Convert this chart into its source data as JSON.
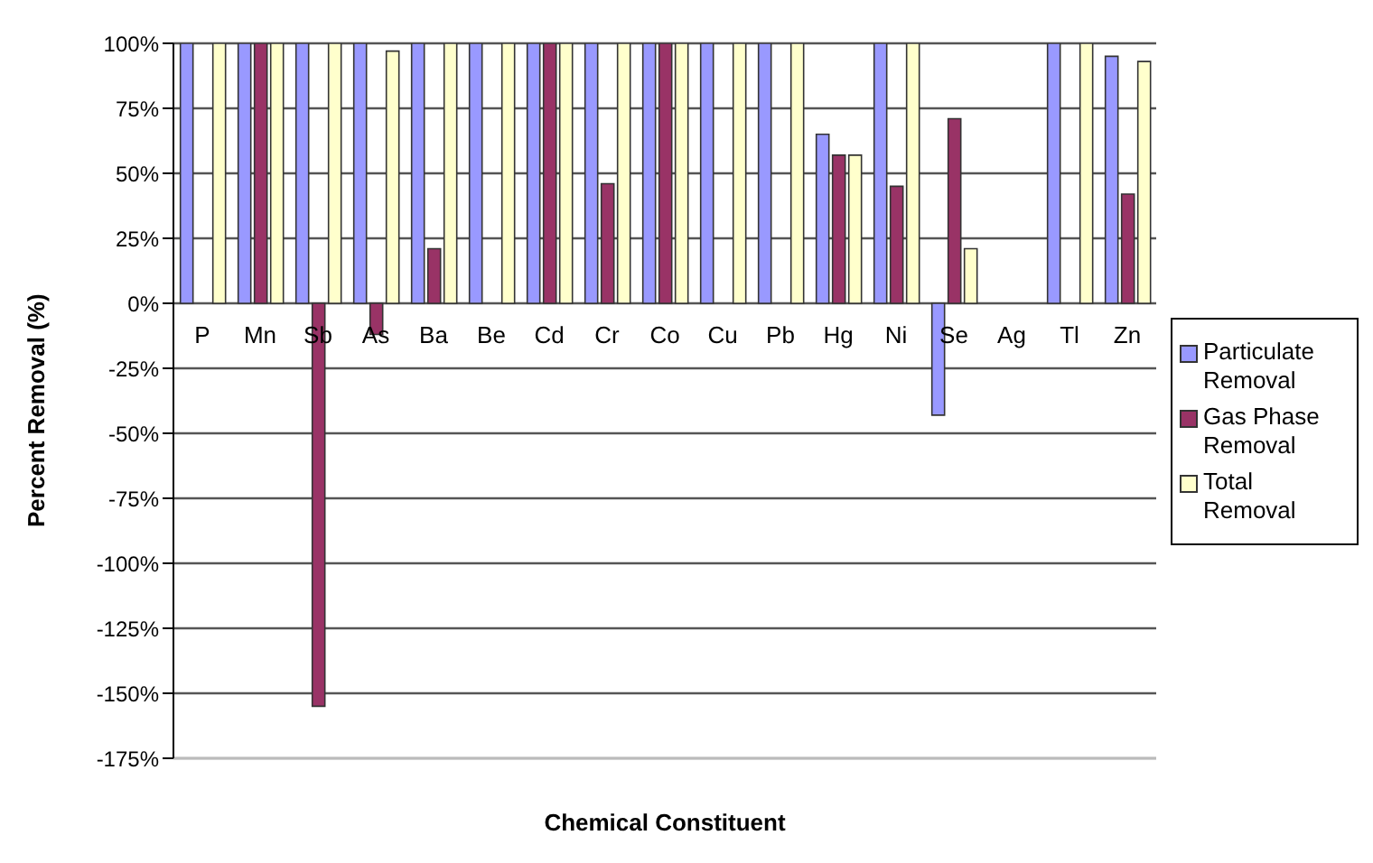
{
  "chart_data": {
    "type": "bar",
    "xlabel": "Chemical Constituent",
    "ylabel": "Percent Removal (%)",
    "categories": [
      "P",
      "Mn",
      "Sb",
      "As",
      "Ba",
      "Be",
      "Cd",
      "Cr",
      "Co",
      "Cu",
      "Pb",
      "Hg",
      "Ni",
      "Se",
      "Ag",
      "Tl",
      "Zn"
    ],
    "series": [
      {
        "name": "Particulate Removal",
        "color": "#9999ff",
        "values": [
          100,
          100,
          100,
          100,
          100,
          100,
          100,
          100,
          100,
          100,
          100,
          65,
          100,
          -43,
          null,
          100,
          95
        ]
      },
      {
        "name": "Gas Phase Removal",
        "color": "#993366",
        "values": [
          null,
          100,
          -155,
          -12,
          21,
          null,
          100,
          46,
          100,
          null,
          null,
          57,
          45,
          71,
          null,
          null,
          42
        ]
      },
      {
        "name": "Total Removal",
        "color": "#ffffcc",
        "values": [
          100,
          100,
          100,
          97,
          100,
          100,
          100,
          100,
          100,
          100,
          100,
          57,
          100,
          21,
          null,
          100,
          93
        ]
      }
    ],
    "ylim": [
      -175,
      100
    ],
    "yticks": [
      {
        "value": -175,
        "label": "-175%"
      },
      {
        "value": -150,
        "label": "-150%"
      },
      {
        "value": -125,
        "label": "-125%"
      },
      {
        "value": -100,
        "label": "-100%"
      },
      {
        "value": -75,
        "label": "-75%"
      },
      {
        "value": -50,
        "label": "-50%"
      },
      {
        "value": -25,
        "label": "-25%"
      },
      {
        "value": 0,
        "label": "0%"
      },
      {
        "value": 25,
        "label": "25%"
      },
      {
        "value": 50,
        "label": "50%"
      },
      {
        "value": 75,
        "label": "75%"
      },
      {
        "value": 100,
        "label": "100%"
      }
    ],
    "grid": "y",
    "legend": "right"
  }
}
